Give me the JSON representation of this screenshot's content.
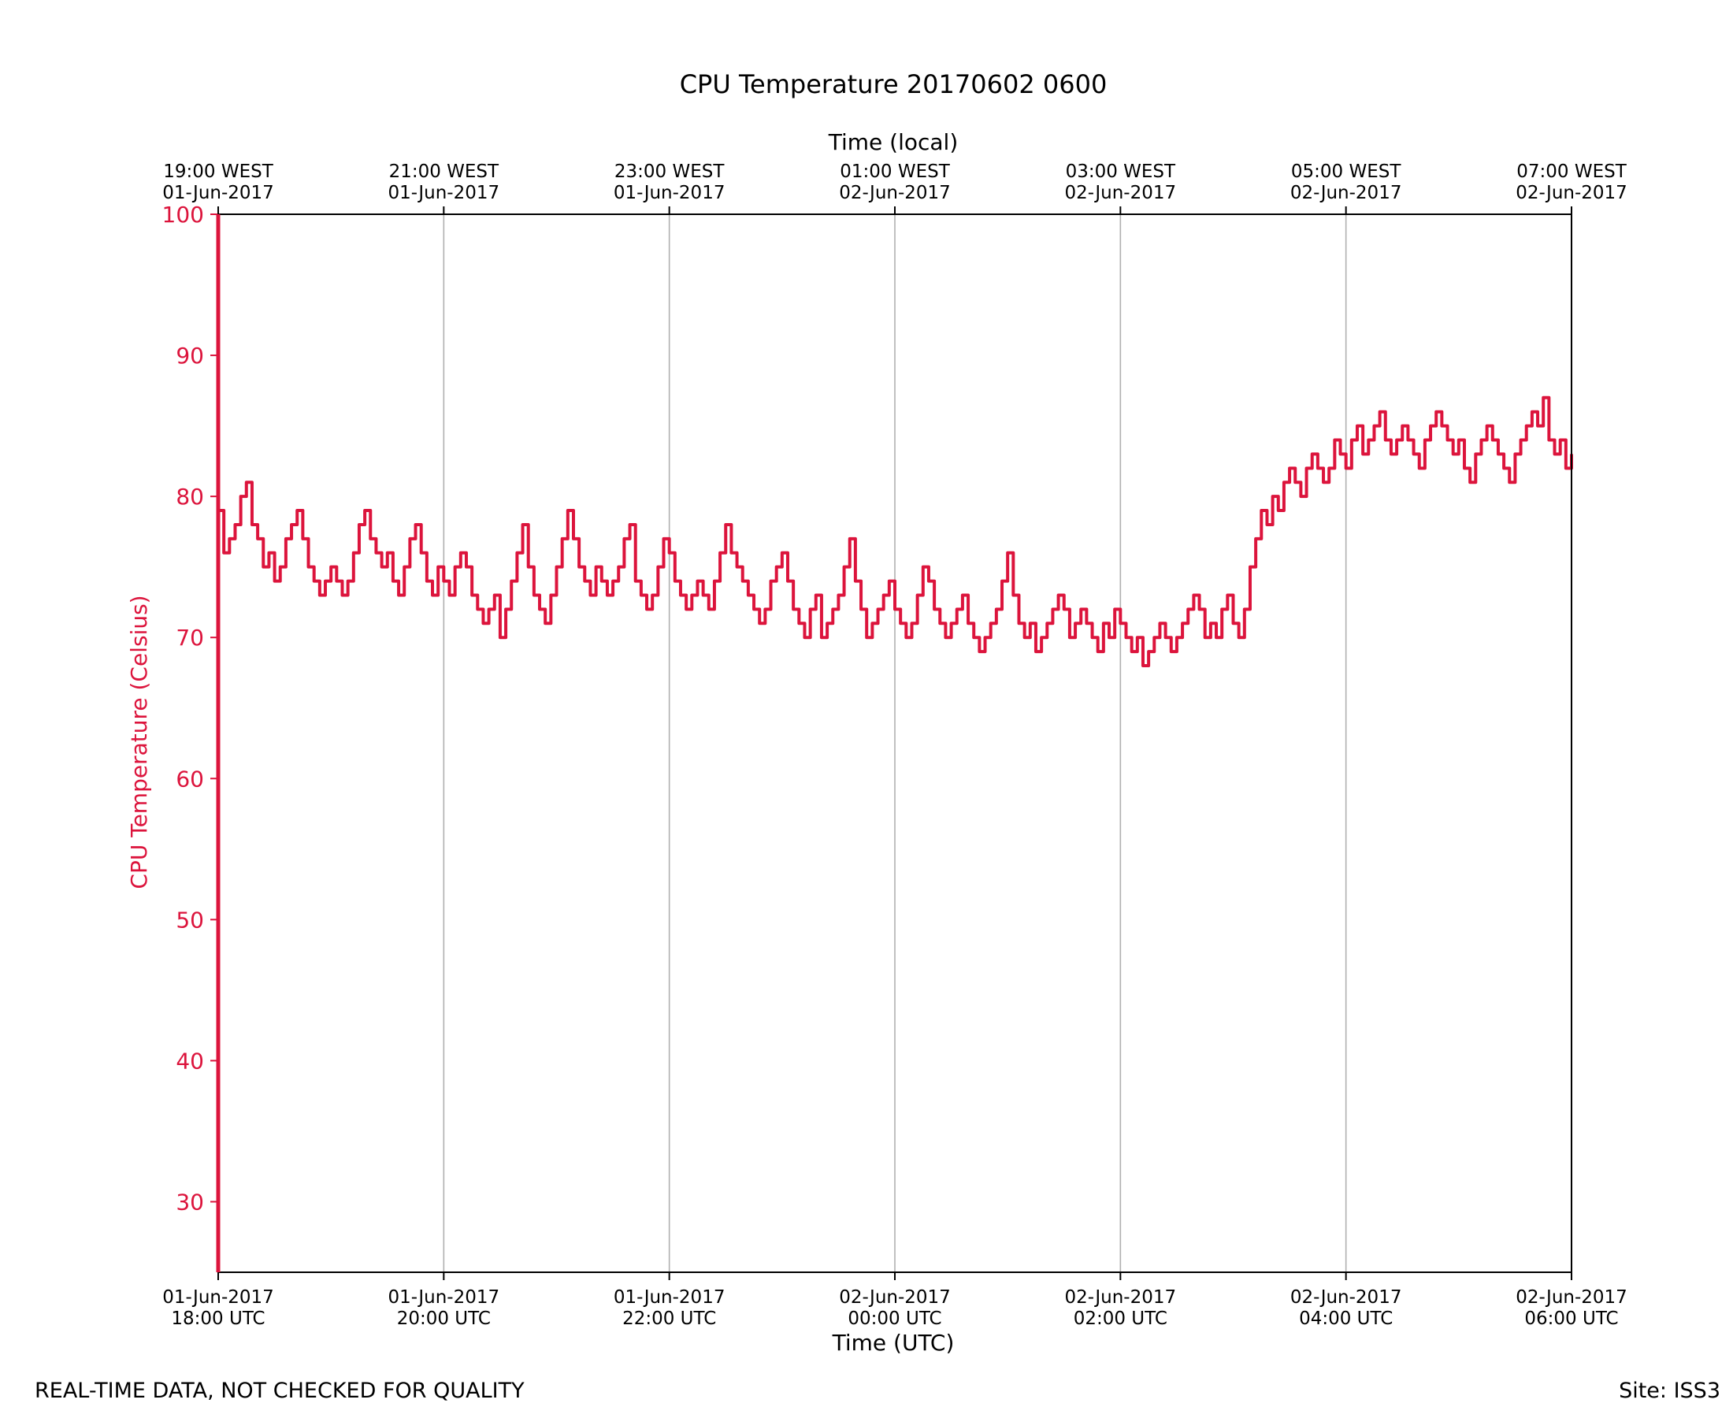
{
  "chart_data": {
    "type": "line",
    "title": "CPU Temperature 20170602 0600",
    "top_axis_label": "Time (local)",
    "xlabel": "Time (UTC)",
    "ylabel": "CPU Temperature (Celsius)",
    "ylim": [
      25,
      100
    ],
    "xlim_hours": [
      0,
      12
    ],
    "yticks": [
      30,
      40,
      50,
      60,
      70,
      80,
      90,
      100
    ],
    "xticks_bottom": [
      {
        "hour": 0,
        "line1": "01-Jun-2017",
        "line2": "18:00 UTC"
      },
      {
        "hour": 2,
        "line1": "01-Jun-2017",
        "line2": "20:00 UTC"
      },
      {
        "hour": 4,
        "line1": "01-Jun-2017",
        "line2": "22:00 UTC"
      },
      {
        "hour": 6,
        "line1": "02-Jun-2017",
        "line2": "00:00 UTC"
      },
      {
        "hour": 8,
        "line1": "02-Jun-2017",
        "line2": "02:00 UTC"
      },
      {
        "hour": 10,
        "line1": "02-Jun-2017",
        "line2": "04:00 UTC"
      },
      {
        "hour": 12,
        "line1": "02-Jun-2017",
        "line2": "06:00 UTC"
      }
    ],
    "xticks_top": [
      {
        "hour": 0,
        "line1": "19:00 WEST",
        "line2": "01-Jun-2017"
      },
      {
        "hour": 2,
        "line1": "21:00 WEST",
        "line2": "01-Jun-2017"
      },
      {
        "hour": 4,
        "line1": "23:00 WEST",
        "line2": "01-Jun-2017"
      },
      {
        "hour": 6,
        "line1": "01:00 WEST",
        "line2": "02-Jun-2017"
      },
      {
        "hour": 8,
        "line1": "03:00 WEST",
        "line2": "02-Jun-2017"
      },
      {
        "hour": 10,
        "line1": "05:00 WEST",
        "line2": "02-Jun-2017"
      },
      {
        "hour": 12,
        "line1": "07:00 WEST",
        "line2": "02-Jun-2017"
      }
    ],
    "grid": "vertical",
    "series": [
      {
        "name": "CPU Temperature",
        "color": "#dc143c",
        "x_hours": [
          0.0,
          0.05,
          0.1,
          0.15,
          0.2,
          0.25,
          0.3,
          0.35,
          0.4,
          0.45,
          0.5,
          0.55,
          0.6,
          0.65,
          0.7,
          0.75,
          0.8,
          0.85,
          0.9,
          0.95,
          1.0,
          1.05,
          1.1,
          1.15,
          1.2,
          1.25,
          1.3,
          1.35,
          1.4,
          1.45,
          1.5,
          1.55,
          1.6,
          1.65,
          1.7,
          1.75,
          1.8,
          1.85,
          1.9,
          1.95,
          2.0,
          2.05,
          2.1,
          2.15,
          2.2,
          2.25,
          2.3,
          2.35,
          2.4,
          2.45,
          2.5,
          2.55,
          2.6,
          2.65,
          2.7,
          2.75,
          2.8,
          2.85,
          2.9,
          2.95,
          3.0,
          3.05,
          3.1,
          3.15,
          3.2,
          3.25,
          3.3,
          3.35,
          3.4,
          3.45,
          3.5,
          3.55,
          3.6,
          3.65,
          3.7,
          3.75,
          3.8,
          3.85,
          3.9,
          3.95,
          4.0,
          4.05,
          4.1,
          4.15,
          4.2,
          4.25,
          4.3,
          4.35,
          4.4,
          4.45,
          4.5,
          4.55,
          4.6,
          4.65,
          4.7,
          4.75,
          4.8,
          4.85,
          4.9,
          4.95,
          5.0,
          5.05,
          5.1,
          5.15,
          5.2,
          5.25,
          5.3,
          5.35,
          5.4,
          5.45,
          5.5,
          5.55,
          5.6,
          5.65,
          5.7,
          5.75,
          5.8,
          5.85,
          5.9,
          5.95,
          6.0,
          6.05,
          6.1,
          6.15,
          6.2,
          6.25,
          6.3,
          6.35,
          6.4,
          6.45,
          6.5,
          6.55,
          6.6,
          6.65,
          6.7,
          6.75,
          6.8,
          6.85,
          6.9,
          6.95,
          7.0,
          7.05,
          7.1,
          7.15,
          7.2,
          7.25,
          7.3,
          7.35,
          7.4,
          7.45,
          7.5,
          7.55,
          7.6,
          7.65,
          7.7,
          7.75,
          7.8,
          7.85,
          7.9,
          7.95,
          8.0,
          8.05,
          8.1,
          8.15,
          8.2,
          8.25,
          8.3,
          8.35,
          8.4,
          8.45,
          8.5,
          8.55,
          8.6,
          8.65,
          8.7,
          8.75,
          8.8,
          8.85,
          8.9,
          8.95,
          9.0,
          9.05,
          9.1,
          9.15,
          9.2,
          9.25,
          9.3,
          9.35,
          9.4,
          9.45,
          9.5,
          9.55,
          9.6,
          9.65,
          9.7,
          9.75,
          9.8,
          9.85,
          9.9,
          9.95,
          10.0,
          10.05,
          10.1,
          10.15,
          10.2,
          10.25,
          10.3,
          10.35,
          10.4,
          10.45,
          10.5,
          10.55,
          10.6,
          10.65,
          10.7,
          10.75,
          10.8,
          10.85,
          10.9,
          10.95,
          11.0,
          11.05,
          11.1,
          11.15,
          11.2,
          11.25,
          11.3,
          11.35,
          11.4,
          11.45,
          11.5,
          11.55,
          11.6,
          11.65,
          11.7,
          11.75,
          11.8,
          11.85,
          11.9,
          11.95,
          12.0
        ],
        "values": [
          79,
          76,
          77,
          78,
          80,
          81,
          78,
          77,
          75,
          76,
          74,
          75,
          77,
          78,
          79,
          77,
          75,
          74,
          73,
          74,
          75,
          74,
          73,
          74,
          76,
          78,
          79,
          77,
          76,
          75,
          76,
          74,
          73,
          75,
          77,
          78,
          76,
          74,
          73,
          75,
          74,
          73,
          75,
          76,
          75,
          73,
          72,
          71,
          72,
          73,
          70,
          72,
          74,
          76,
          78,
          75,
          73,
          72,
          71,
          73,
          75,
          77,
          79,
          77,
          75,
          74,
          73,
          75,
          74,
          73,
          74,
          75,
          77,
          78,
          74,
          73,
          72,
          73,
          75,
          77,
          76,
          74,
          73,
          72,
          73,
          74,
          73,
          72,
          74,
          76,
          78,
          76,
          75,
          74,
          73,
          72,
          71,
          72,
          74,
          75,
          76,
          74,
          72,
          71,
          70,
          72,
          73,
          70,
          71,
          72,
          73,
          75,
          77,
          74,
          72,
          70,
          71,
          72,
          73,
          74,
          72,
          71,
          70,
          71,
          73,
          75,
          74,
          72,
          71,
          70,
          71,
          72,
          73,
          71,
          70,
          69,
          70,
          71,
          72,
          74,
          76,
          73,
          71,
          70,
          71,
          69,
          70,
          71,
          72,
          73,
          72,
          70,
          71,
          72,
          71,
          70,
          69,
          71,
          70,
          72,
          71,
          70,
          69,
          70,
          68,
          69,
          70,
          71,
          70,
          69,
          70,
          71,
          72,
          73,
          72,
          70,
          71,
          70,
          72,
          73,
          71,
          70,
          72,
          75,
          77,
          79,
          78,
          80,
          79,
          81,
          82,
          81,
          80,
          82,
          83,
          82,
          81,
          82,
          84,
          83,
          82,
          84,
          85,
          83,
          84,
          85,
          86,
          84,
          83,
          84,
          85,
          84,
          83,
          82,
          84,
          85,
          86,
          85,
          84,
          83,
          84,
          82,
          81,
          83,
          84,
          85,
          84,
          83,
          82,
          81,
          83,
          84,
          85,
          86,
          85,
          87,
          84,
          83,
          84,
          82,
          83
        ]
      }
    ]
  },
  "footer": {
    "left": "REAL-TIME DATA, NOT CHECKED FOR QUALITY",
    "right": "Site: ISS3"
  },
  "colors": {
    "series": "#dc143c",
    "left_axis": "#dc143c",
    "grid": "#b0b0b0",
    "frame": "#000000"
  }
}
